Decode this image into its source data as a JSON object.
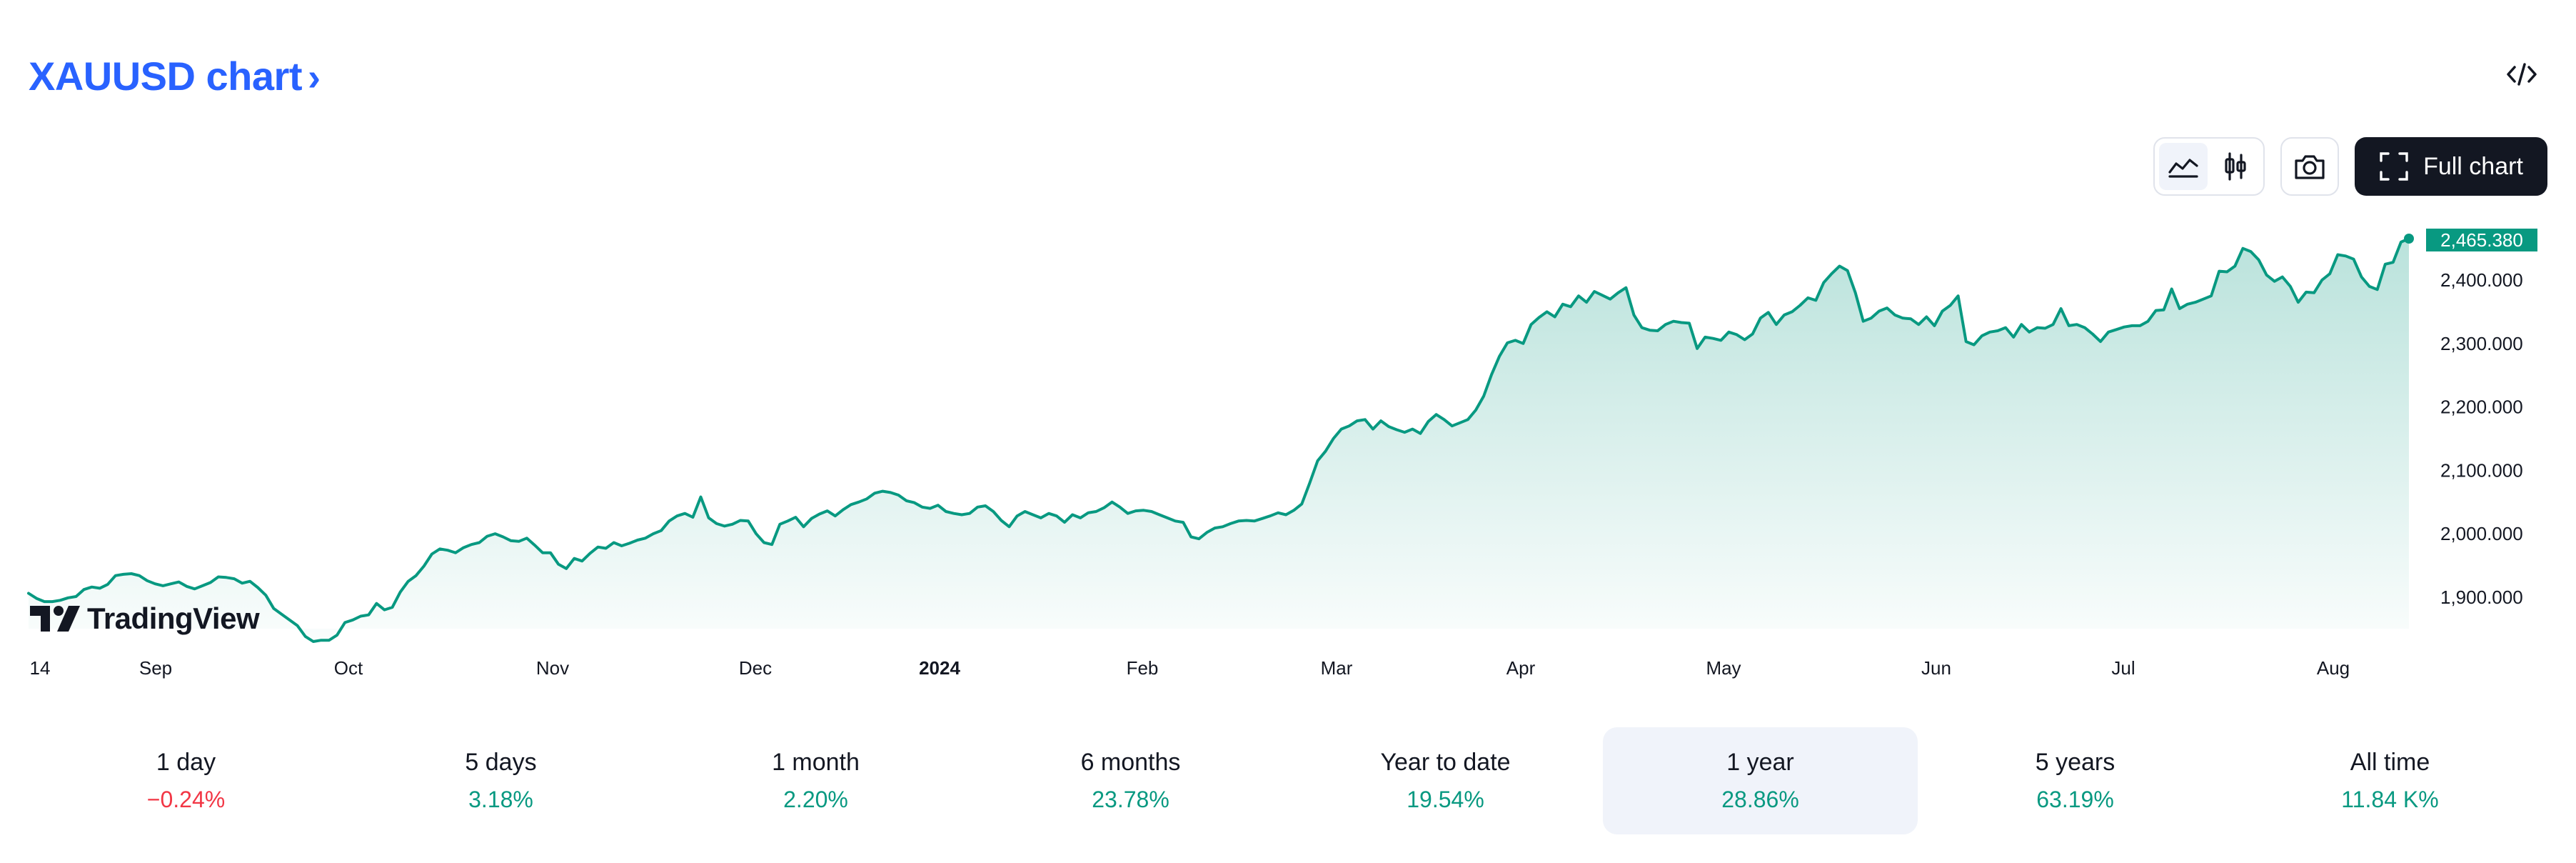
{
  "header": {
    "title": "XAUUSD chart",
    "chevron": "›",
    "embed_icon": "code-icon"
  },
  "toolbar": {
    "line_icon": "area-chart-icon",
    "candle_icon": "candlestick-icon",
    "camera_icon": "camera-icon",
    "full_chart_icon": "fullscreen-icon",
    "full_chart_label": "Full chart"
  },
  "brand": {
    "logo_text": "TradingView"
  },
  "colors": {
    "line": "#089981",
    "price_label_bg": "#089981",
    "up": "#089981",
    "down": "#f23645",
    "title": "#2962ff",
    "button_dark": "#131722"
  },
  "chart_data": {
    "type": "area",
    "series": [
      {
        "name": "XAUUSD",
        "values": [
          1906,
          1898,
          1893,
          1893,
          1895,
          1899,
          1901,
          1912,
          1916,
          1914,
          1920,
          1934,
          1936,
          1937,
          1934,
          1926,
          1921,
          1918,
          1921,
          1924,
          1917,
          1913,
          1918,
          1923,
          1932,
          1931,
          1929,
          1922,
          1925,
          1915,
          1903,
          1882,
          1873,
          1864,
          1855,
          1838,
          1830,
          1832,
          1832,
          1840,
          1860,
          1864,
          1870,
          1872,
          1890,
          1880,
          1884,
          1908,
          1925,
          1934,
          1949,
          1968,
          1976,
          1974,
          1970,
          1978,
          1983,
          1986,
          1996,
          2000,
          1995,
          1989,
          1988,
          1993,
          1982,
          1970,
          1970,
          1952,
          1945,
          1961,
          1957,
          1969,
          1979,
          1977,
          1986,
          1981,
          1985,
          1990,
          1993,
          2000,
          2005,
          2020,
          2028,
          2032,
          2026,
          2058,
          2025,
          2016,
          2012,
          2015,
          2021,
          2020,
          2000,
          1986,
          1983,
          2015,
          2020,
          2026,
          2011,
          2024,
          2031,
          2036,
          2028,
          2038,
          2046,
          2050,
          2055,
          2064,
          2067,
          2065,
          2061,
          2052,
          2049,
          2042,
          2040,
          2045,
          2035,
          2032,
          2030,
          2032,
          2042,
          2044,
          2035,
          2021,
          2011,
          2028,
          2035,
          2030,
          2025,
          2032,
          2028,
          2018,
          2030,
          2025,
          2033,
          2035,
          2041,
          2050,
          2042,
          2032,
          2036,
          2037,
          2035,
          2030,
          2025,
          2020,
          2018,
          1995,
          1992,
          2002,
          2009,
          2011,
          2016,
          2020,
          2021,
          2020,
          2024,
          2028,
          2033,
          2030,
          2037,
          2047,
          2080,
          2115,
          2130,
          2150,
          2165,
          2170,
          2178,
          2180,
          2165,
          2178,
          2169,
          2164,
          2160,
          2165,
          2158,
          2177,
          2188,
          2180,
          2170,
          2175,
          2180,
          2195,
          2217,
          2251,
          2280,
          2301,
          2305,
          2300,
          2330,
          2341,
          2350,
          2342,
          2362,
          2358,
          2375,
          2365,
          2382,
          2376,
          2370,
          2380,
          2388,
          2345,
          2325,
          2321,
          2320,
          2330,
          2335,
          2333,
          2332,
          2292,
          2310,
          2308,
          2305,
          2318,
          2314,
          2306,
          2315,
          2340,
          2349,
          2330,
          2345,
          2350,
          2360,
          2372,
          2368,
          2396,
          2410,
          2422,
          2415,
          2380,
          2335,
          2340,
          2351,
          2356,
          2345,
          2340,
          2339,
          2330,
          2342,
          2328,
          2351,
          2360,
          2375,
          2303,
          2298,
          2312,
          2318,
          2320,
          2325,
          2310,
          2330,
          2318,
          2325,
          2324,
          2330,
          2355,
          2328,
          2330,
          2325,
          2315,
          2303,
          2318,
          2322,
          2326,
          2328,
          2328,
          2335,
          2352,
          2353,
          2386,
          2355,
          2362,
          2365,
          2370,
          2375,
          2414,
          2413,
          2422,
          2450,
          2445,
          2432,
          2408,
          2398,
          2405,
          2390,
          2365,
          2381,
          2380,
          2400,
          2410,
          2440,
          2438,
          2433,
          2405,
          2390,
          2385,
          2425,
          2428,
          2460,
          2465.38
        ]
      }
    ],
    "x_ticks": [
      "14",
      "Sep",
      "Oct",
      "Nov",
      "Dec",
      "2024",
      "Feb",
      "Mar",
      "Apr",
      "May",
      "Jun",
      "Jul",
      "Aug"
    ],
    "y_ticks": [
      "1,900.000",
      "2,000.000",
      "2,100.000",
      "2,200.000",
      "2,300.000",
      "2,400.000"
    ],
    "ylim": [
      1830,
      2465.38
    ],
    "last_price": "2,465.380",
    "grid": false,
    "legend": "none"
  },
  "periods": [
    {
      "label": "1 day",
      "change": "−0.24%",
      "direction": "down"
    },
    {
      "label": "5 days",
      "change": "3.18%",
      "direction": "up"
    },
    {
      "label": "1 month",
      "change": "2.20%",
      "direction": "up"
    },
    {
      "label": "6 months",
      "change": "23.78%",
      "direction": "up"
    },
    {
      "label": "Year to date",
      "change": "19.54%",
      "direction": "up"
    },
    {
      "label": "1 year",
      "change": "28.86%",
      "direction": "up",
      "active": true
    },
    {
      "label": "5 years",
      "change": "63.19%",
      "direction": "up"
    },
    {
      "label": "All time",
      "change": "11.84 K%",
      "direction": "up"
    }
  ]
}
